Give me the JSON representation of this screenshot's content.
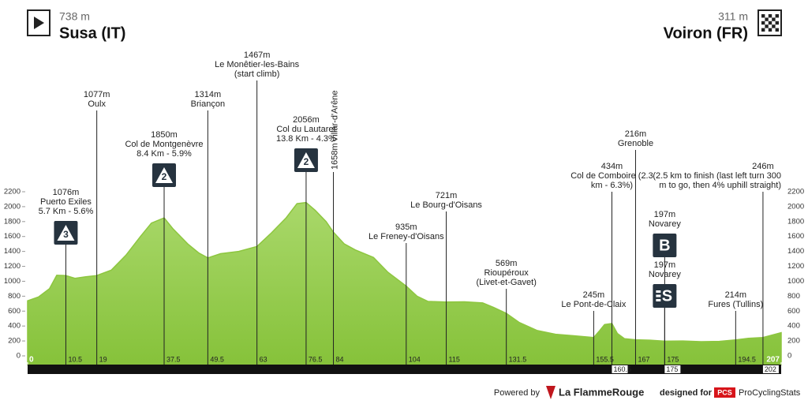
{
  "header": {
    "start_alt": "738 m",
    "start": "Susa (IT)",
    "finish_alt": "311 m",
    "finish": "Voiron (FR)"
  },
  "footer": {
    "powered": "Powered by",
    "brand": "La FlammeRouge",
    "designed": "designed for",
    "pcs": "PCS",
    "site": "ProCyclingStats"
  },
  "chart_data": {
    "type": "area",
    "color": "#8dc63f",
    "xlim": [
      0,
      207
    ],
    "xticks": [
      0,
      207
    ],
    "ylim": [
      0,
      2200
    ],
    "yticks": [
      0,
      200,
      400,
      600,
      800,
      1000,
      1200,
      1400,
      1600,
      1800,
      2000,
      2200
    ],
    "x": [
      0,
      3,
      6,
      8,
      10.5,
      13,
      16,
      19,
      23,
      27,
      31,
      34,
      37.5,
      40,
      44,
      47,
      49.5,
      53,
      58,
      63,
      67,
      71,
      74,
      76.5,
      79,
      82,
      84,
      87,
      90,
      95,
      99,
      104,
      107,
      110,
      115,
      120,
      125,
      128,
      131.5,
      135,
      140,
      145,
      150,
      155.5,
      157,
      158.5,
      160.5,
      162,
      164,
      167,
      171,
      175,
      180,
      185,
      190,
      194.5,
      198,
      202,
      207
    ],
    "values": [
      738,
      790,
      900,
      1080,
      1076,
      1040,
      1060,
      1077,
      1150,
      1350,
      1600,
      1780,
      1850,
      1700,
      1500,
      1380,
      1314,
      1370,
      1400,
      1467,
      1650,
      1850,
      2040,
      2056,
      1950,
      1800,
      1658,
      1500,
      1420,
      1320,
      1120,
      935,
      800,
      730,
      721,
      725,
      710,
      650,
      569,
      450,
      340,
      290,
      270,
      245,
      330,
      420,
      434,
      300,
      230,
      216,
      210,
      197,
      200,
      190,
      195,
      214,
      235,
      246,
      311
    ],
    "markers": [
      {
        "km": 10.5,
        "alt": 1076,
        "alt_label": "1076m",
        "lines": [
          "Puerto Exiles",
          "5.7 Km - 5.6%"
        ],
        "badge": "3"
      },
      {
        "km": 19,
        "alt": 1077,
        "alt_label": "1077m",
        "lines": [
          "Oulx"
        ]
      },
      {
        "km": 37.5,
        "alt": 1850,
        "alt_label": "1850m",
        "lines": [
          "Col de Montgenèvre",
          "8.4 Km - 5.9%"
        ],
        "badge": "2"
      },
      {
        "km": 49.5,
        "alt": 1314,
        "alt_label": "1314m",
        "lines": [
          "Briançon"
        ]
      },
      {
        "km": 63,
        "alt": 1467,
        "alt_label": "1467m",
        "lines": [
          "Le Monêtier-les-Bains",
          "(start climb)"
        ]
      },
      {
        "km": 76.5,
        "alt": 2056,
        "alt_label": "2056m",
        "lines": [
          "Col du Lautaret",
          "13.8 Km - 4.3%"
        ],
        "badge": "2"
      },
      {
        "km": 84,
        "alt": 1658,
        "alt_label": "1658m",
        "lines": [
          "Villar-d'Arêne"
        ]
      },
      {
        "km": 104,
        "alt": 935,
        "alt_label": "935m",
        "lines": [
          "Le Freney-d'Oisans"
        ]
      },
      {
        "km": 115,
        "alt": 721,
        "alt_label": "721m",
        "lines": [
          "Le Bourg-d'Oisans"
        ]
      },
      {
        "km": 131.5,
        "alt": 569,
        "alt_label": "569m",
        "lines": [
          "Rioupéroux",
          "(Livet-et-Gavet)"
        ]
      },
      {
        "km": 155.5,
        "alt": 245,
        "alt_label": "245m",
        "lines": [
          "Le Pont-de-Claix"
        ]
      },
      {
        "km": 160.5,
        "alt": 434,
        "alt_label": "434m",
        "lines": [
          "Col de Comboire (2.3",
          "km - 6.3%)"
        ]
      },
      {
        "km": 167,
        "alt": 216,
        "alt_label": "216m",
        "lines": [
          "Grenoble"
        ]
      },
      {
        "km": 175,
        "alt": 197,
        "alt_label": "197m",
        "lines": [
          "Novarey"
        ],
        "badge": "B"
      },
      {
        "km": 175,
        "alt": 197,
        "alt_label": "197m",
        "lines": [
          "Novarey"
        ],
        "badge": "S"
      },
      {
        "km": 194.5,
        "alt": 214,
        "alt_label": "214m",
        "lines": [
          "Fures (Tullins)"
        ]
      },
      {
        "km": 202,
        "alt": 246,
        "alt_label": "246m",
        "lines": [
          "(2.5 km to finish (last left turn 300",
          "m to go, then 4% uphill straight)"
        ]
      }
    ]
  }
}
